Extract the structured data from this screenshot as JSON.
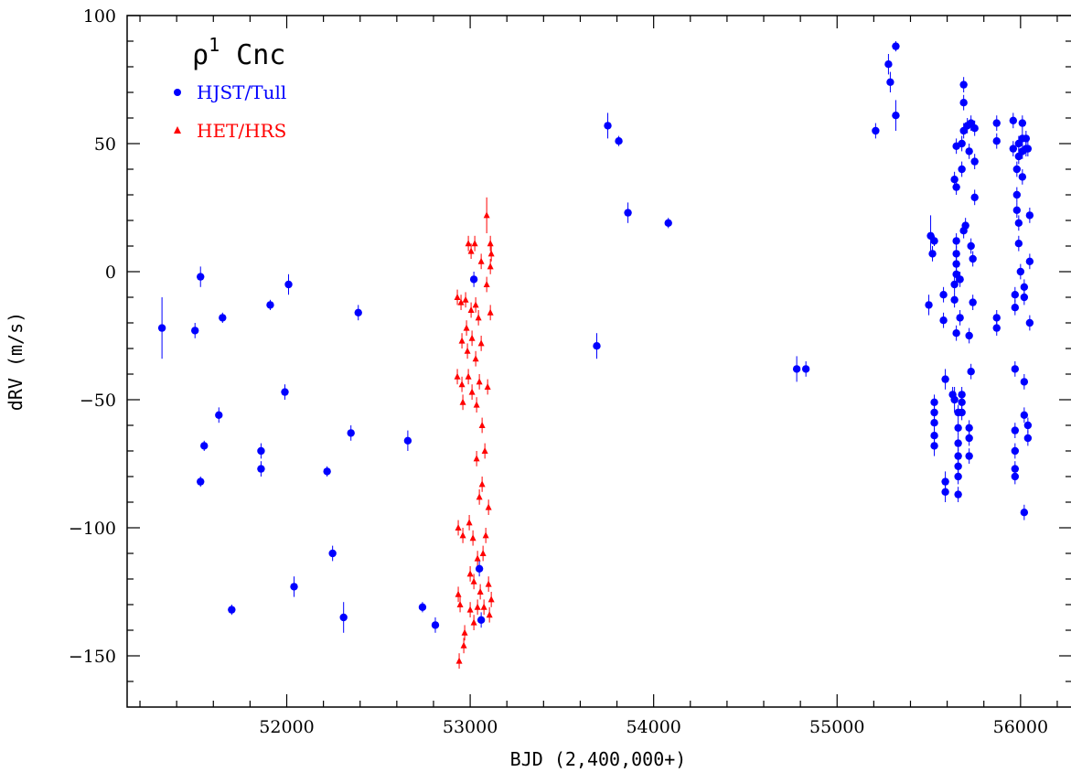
{
  "chart_data": {
    "type": "scatter",
    "title_main": "ρ",
    "title_sup": "1",
    "title_rest": " Cnc",
    "xlabel": "BJD (2,400,000+)",
    "ylabel": "dRV (m/s)",
    "xlim": [
      51130,
      56280
    ],
    "ylim": [
      -170,
      100
    ],
    "x_ticks": [
      52000,
      53000,
      54000,
      55000,
      56000
    ],
    "y_ticks": [
      -150,
      -100,
      -50,
      0,
      50,
      100
    ],
    "legend_position": "top-left",
    "series": [
      {
        "name": "HJST/Tull",
        "color": "#0000ff",
        "marker": "circle",
        "points": [
          [
            51320,
            -22,
            12
          ],
          [
            51500,
            -23,
            3
          ],
          [
            51530,
            -2,
            4
          ],
          [
            51530,
            -82,
            2
          ],
          [
            51550,
            -68,
            2
          ],
          [
            51630,
            -56,
            3
          ],
          [
            51650,
            -18,
            2
          ],
          [
            51700,
            -132,
            2
          ],
          [
            51860,
            -77,
            3
          ],
          [
            51860,
            -70,
            3
          ],
          [
            51910,
            -13,
            2
          ],
          [
            51990,
            -47,
            3
          ],
          [
            52010,
            -5,
            4
          ],
          [
            52040,
            -123,
            4
          ],
          [
            52220,
            -78,
            2
          ],
          [
            52250,
            -110,
            3
          ],
          [
            52310,
            -135,
            6
          ],
          [
            52350,
            -63,
            3
          ],
          [
            52390,
            -16,
            3
          ],
          [
            52660,
            -66,
            4
          ],
          [
            52740,
            -131,
            2
          ],
          [
            52810,
            -138,
            3
          ],
          [
            53020,
            -3,
            3
          ],
          [
            53050,
            -116,
            3
          ],
          [
            53060,
            -136,
            3
          ],
          [
            53690,
            -29,
            5
          ],
          [
            53750,
            57,
            5
          ],
          [
            53810,
            51,
            2
          ],
          [
            53860,
            23,
            4
          ],
          [
            54080,
            19,
            2
          ],
          [
            54780,
            -38,
            5
          ],
          [
            54830,
            -38,
            3
          ],
          [
            55210,
            55,
            3
          ],
          [
            55280,
            81,
            4
          ],
          [
            55290,
            74,
            4
          ],
          [
            55320,
            88,
            2
          ],
          [
            55320,
            61,
            6
          ],
          [
            55500,
            -13,
            4
          ],
          [
            55510,
            14,
            8
          ],
          [
            55520,
            7,
            3
          ],
          [
            55530,
            12,
            2
          ],
          [
            55530,
            -51,
            3
          ],
          [
            55530,
            -55,
            3
          ],
          [
            55530,
            -59,
            3
          ],
          [
            55530,
            -64,
            3
          ],
          [
            55530,
            -68,
            4
          ],
          [
            55580,
            -9,
            3
          ],
          [
            55580,
            -19,
            3
          ],
          [
            55590,
            -42,
            4
          ],
          [
            55590,
            -82,
            4
          ],
          [
            55590,
            -86,
            4
          ],
          [
            55630,
            -48,
            3
          ],
          [
            55640,
            -50,
            5
          ],
          [
            55640,
            -5,
            3
          ],
          [
            55640,
            -11,
            3
          ],
          [
            55650,
            -1,
            3
          ],
          [
            55650,
            3,
            3
          ],
          [
            55650,
            7,
            3
          ],
          [
            55650,
            12,
            3
          ],
          [
            55650,
            -24,
            3
          ],
          [
            55640,
            36,
            3
          ],
          [
            55650,
            33,
            3
          ],
          [
            55650,
            49,
            3
          ],
          [
            55660,
            -55,
            3
          ],
          [
            55660,
            -61,
            3
          ],
          [
            55660,
            -67,
            3
          ],
          [
            55660,
            -72,
            3
          ],
          [
            55660,
            -76,
            3
          ],
          [
            55660,
            -80,
            3
          ],
          [
            55660,
            -87,
            3
          ],
          [
            55670,
            -18,
            3
          ],
          [
            55670,
            -3,
            3
          ],
          [
            55680,
            40,
            3
          ],
          [
            55680,
            50,
            3
          ],
          [
            55680,
            -48,
            3
          ],
          [
            55680,
            -51,
            3
          ],
          [
            55680,
            -55,
            3
          ],
          [
            55690,
            73,
            3
          ],
          [
            55690,
            66,
            3
          ],
          [
            55690,
            55,
            3
          ],
          [
            55690,
            16,
            3
          ],
          [
            55700,
            18,
            3
          ],
          [
            55710,
            57,
            3
          ],
          [
            55720,
            47,
            3
          ],
          [
            55720,
            -61,
            3
          ],
          [
            55720,
            -65,
            3
          ],
          [
            55720,
            -72,
            3
          ],
          [
            55720,
            -25,
            3
          ],
          [
            55730,
            58,
            3
          ],
          [
            55730,
            -39,
            3
          ],
          [
            55730,
            10,
            3
          ],
          [
            55740,
            5,
            3
          ],
          [
            55740,
            -12,
            3
          ],
          [
            55750,
            56,
            3
          ],
          [
            55750,
            43,
            3
          ],
          [
            55750,
            29,
            3
          ],
          [
            55870,
            58,
            3
          ],
          [
            55870,
            51,
            3
          ],
          [
            55870,
            -18,
            3
          ],
          [
            55870,
            -22,
            3
          ],
          [
            55960,
            59,
            3
          ],
          [
            55960,
            48,
            3
          ],
          [
            55970,
            -38,
            3
          ],
          [
            55970,
            -62,
            3
          ],
          [
            55970,
            -70,
            3
          ],
          [
            55970,
            -77,
            3
          ],
          [
            55970,
            -80,
            3
          ],
          [
            55970,
            -9,
            3
          ],
          [
            55970,
            -14,
            3
          ],
          [
            55980,
            40,
            3
          ],
          [
            55980,
            30,
            3
          ],
          [
            55980,
            24,
            3
          ],
          [
            55990,
            19,
            3
          ],
          [
            55990,
            50,
            3
          ],
          [
            55990,
            45,
            3
          ],
          [
            56000,
            0,
            3
          ],
          [
            56010,
            58,
            3
          ],
          [
            56010,
            52,
            3
          ],
          [
            56010,
            47,
            3
          ],
          [
            56010,
            37,
            3
          ],
          [
            56020,
            -6,
            3
          ],
          [
            56020,
            -10,
            3
          ],
          [
            56020,
            -43,
            3
          ],
          [
            56020,
            -56,
            3
          ],
          [
            56020,
            -94,
            3
          ],
          [
            56030,
            48,
            3
          ],
          [
            56030,
            52,
            3
          ],
          [
            56040,
            -60,
            3
          ],
          [
            56040,
            -65,
            3
          ],
          [
            56050,
            22,
            3
          ],
          [
            56050,
            4,
            3
          ],
          [
            56050,
            -20,
            3
          ],
          [
            56040,
            48,
            3
          ],
          [
            55990,
            11,
            3
          ]
        ]
      },
      {
        "name": "HET/HRS",
        "color": "#ff0000",
        "marker": "triangle",
        "points": [
          [
            52930,
            -10,
            3
          ],
          [
            52930,
            -41,
            3
          ],
          [
            52935,
            -100,
            3
          ],
          [
            52935,
            -126,
            3
          ],
          [
            52940,
            -152,
            3
          ],
          [
            52945,
            -130,
            3
          ],
          [
            52950,
            -12,
            3
          ],
          [
            52955,
            -27,
            3
          ],
          [
            52955,
            -44,
            3
          ],
          [
            52960,
            -51,
            3
          ],
          [
            52960,
            -103,
            3
          ],
          [
            52965,
            -146,
            3
          ],
          [
            52970,
            -141,
            3
          ],
          [
            52975,
            -11,
            3
          ],
          [
            52980,
            -22,
            3
          ],
          [
            52985,
            -31,
            3
          ],
          [
            52990,
            -41,
            3
          ],
          [
            52990,
            11,
            3
          ],
          [
            52995,
            -98,
            3
          ],
          [
            53000,
            -118,
            3
          ],
          [
            53000,
            -132,
            3
          ],
          [
            53005,
            8,
            3
          ],
          [
            53005,
            -15,
            3
          ],
          [
            53010,
            -26,
            3
          ],
          [
            53010,
            -47,
            3
          ],
          [
            53015,
            -104,
            3
          ],
          [
            53020,
            -121,
            3
          ],
          [
            53020,
            -137,
            3
          ],
          [
            53025,
            11,
            3
          ],
          [
            53030,
            -13,
            3
          ],
          [
            53030,
            -34,
            3
          ],
          [
            53035,
            -52,
            3
          ],
          [
            53035,
            -73,
            3
          ],
          [
            53040,
            -112,
            3
          ],
          [
            53040,
            -131,
            3
          ],
          [
            53045,
            -18,
            3
          ],
          [
            53050,
            -43,
            3
          ],
          [
            53050,
            -88,
            3
          ],
          [
            53055,
            -125,
            3
          ],
          [
            53060,
            4,
            3
          ],
          [
            53060,
            -28,
            3
          ],
          [
            53065,
            -60,
            3
          ],
          [
            53065,
            -83,
            3
          ],
          [
            53070,
            -110,
            3
          ],
          [
            53075,
            -131,
            3
          ],
          [
            53080,
            -70,
            3
          ],
          [
            53085,
            -103,
            3
          ],
          [
            53090,
            22,
            7
          ],
          [
            53090,
            -5,
            3
          ],
          [
            53095,
            -45,
            3
          ],
          [
            53100,
            -92,
            3
          ],
          [
            53100,
            -122,
            3
          ],
          [
            53105,
            -134,
            3
          ],
          [
            53110,
            11,
            3
          ],
          [
            53110,
            -16,
            3
          ],
          [
            53110,
            2,
            3
          ],
          [
            53115,
            7,
            3
          ],
          [
            53115,
            -128,
            3
          ]
        ]
      }
    ]
  }
}
